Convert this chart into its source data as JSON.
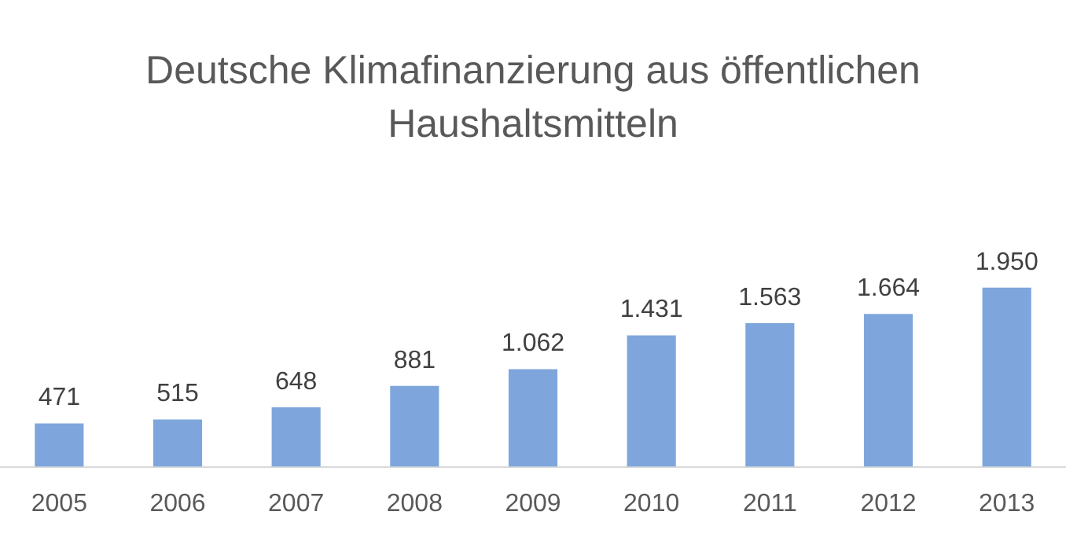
{
  "chart_data": {
    "type": "bar",
    "title": "Deutsche Klimafinanzierung aus öffentlichen Haushaltsmitteln",
    "categories": [
      "2005",
      "2006",
      "2007",
      "2008",
      "2009",
      "2010",
      "2011",
      "2012",
      "2013"
    ],
    "values": [
      471,
      515,
      648,
      881,
      1062,
      1431,
      1563,
      1664,
      1950
    ],
    "value_labels": [
      "471",
      "515",
      "648",
      "881",
      "1.062",
      "1.431",
      "1.563",
      "1.664",
      "1.950"
    ],
    "color": "#7ea6dc",
    "tick_labels": "x"
  }
}
